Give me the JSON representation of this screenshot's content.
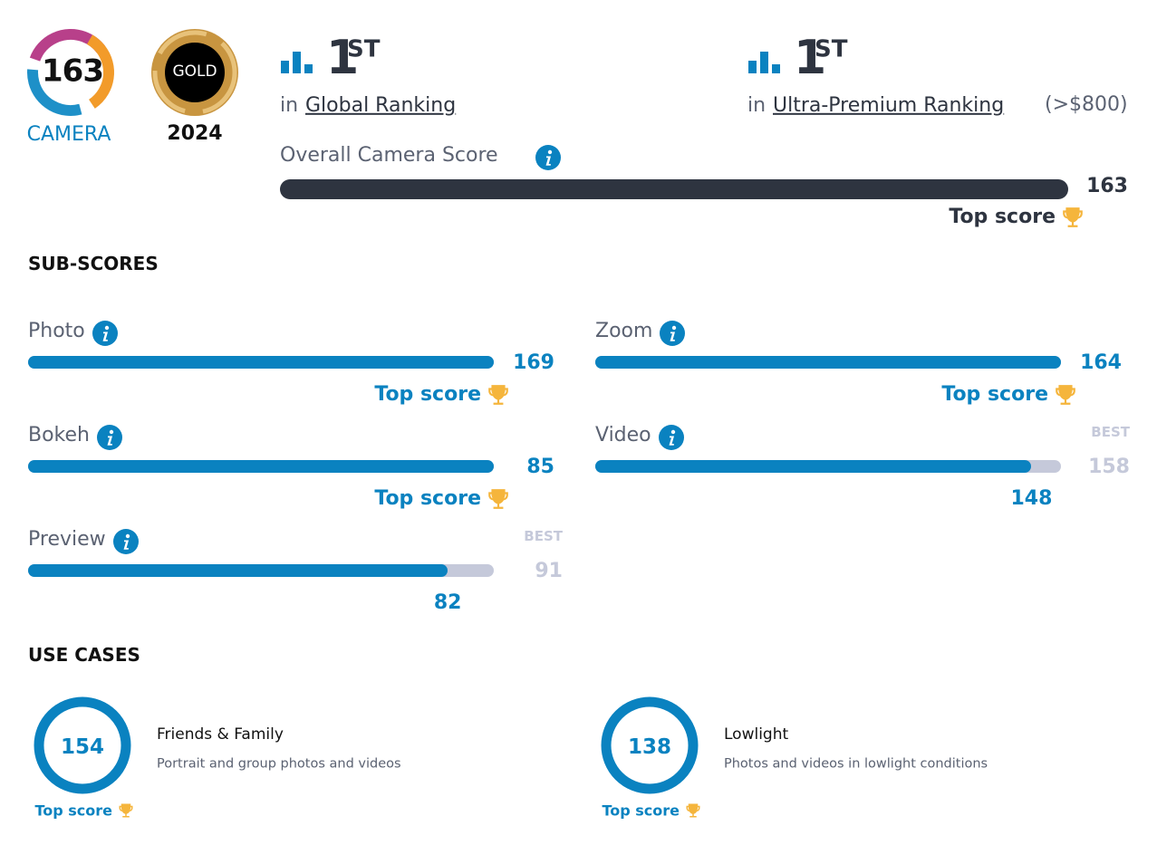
{
  "badges": {
    "camera_score": 163,
    "camera_label": "CAMERA",
    "gold_label": "GOLD",
    "gold_year": "2024"
  },
  "rankings": [
    {
      "rank": 1,
      "suffix": "ST",
      "prefix": "in",
      "name": "Global Ranking"
    },
    {
      "rank": 1,
      "suffix": "ST",
      "prefix": "in",
      "name": "Ultra-Premium Ranking",
      "note": "(>$800)"
    }
  ],
  "overall": {
    "label": "Overall Camera Score",
    "score": 163,
    "top_label": "Top score"
  },
  "subscores": {
    "title": "SUB-SCORES",
    "items": [
      {
        "name": "Photo",
        "score": 169,
        "top_label": "Top score"
      },
      {
        "name": "Zoom",
        "score": 164,
        "top_label": "Top score"
      },
      {
        "name": "Bokeh",
        "score": 85,
        "top_label": "Top score"
      },
      {
        "name": "Video",
        "score": 148,
        "best_label": "BEST",
        "best": 158
      },
      {
        "name": "Preview",
        "score": 82,
        "best_label": "BEST",
        "best": 91
      }
    ]
  },
  "use_cases": {
    "title": "USE CASES",
    "items": [
      {
        "score": 154,
        "name": "Friends & Family",
        "description": "Portrait and group photos and videos",
        "top_label": "Top score"
      },
      {
        "score": 138,
        "name": "Lowlight",
        "description": "Photos and videos in lowlight conditions",
        "top_label": "Top score"
      }
    ]
  }
}
